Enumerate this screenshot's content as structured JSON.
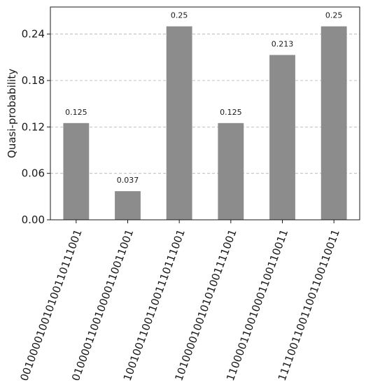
{
  "chart_data": {
    "type": "bar",
    "title": "",
    "xlabel": "",
    "ylabel": "Quasi-probability",
    "categories": [
      "001000010010100110111001",
      "010000110010000110011001",
      "100100110011001110111001",
      "101000010010101001111001",
      "110000110010001100110011",
      "111100110011001100110011"
    ],
    "values": [
      0.125,
      0.037,
      0.25,
      0.125,
      0.213,
      0.25
    ],
    "data_labels": [
      "0.125",
      "0.037",
      "0.25",
      "0.125",
      "0.213",
      "0.25"
    ],
    "ylim": [
      0,
      0.275
    ],
    "yticks": [
      0.0,
      0.06,
      0.12,
      0.18,
      0.24
    ],
    "ytick_labels": [
      "0.00",
      "0.06",
      "0.12",
      "0.18",
      "0.24"
    ],
    "grid": "horizontal dashed",
    "bar_color": "#8c8c8c",
    "grid_color": "#b0b0b0"
  }
}
